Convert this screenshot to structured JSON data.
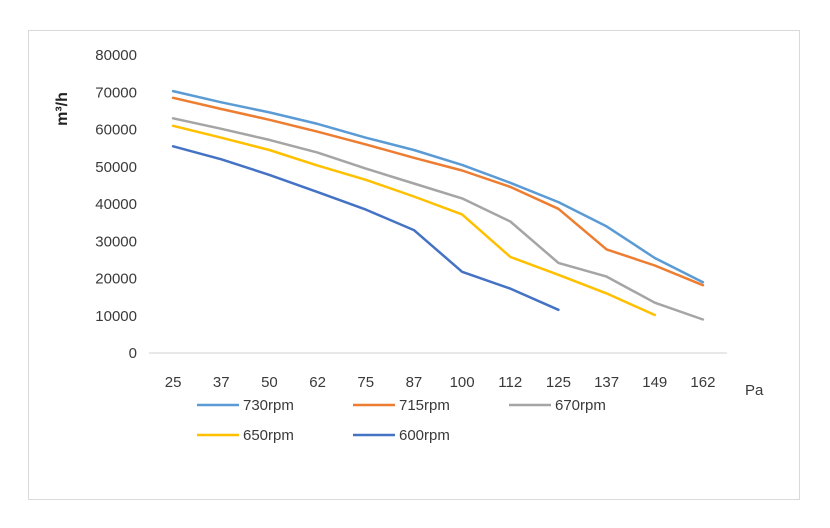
{
  "chart_data": {
    "type": "line",
    "title": "",
    "ylabel": "m³/h",
    "xunit": "Pa",
    "ylim": [
      0,
      80000
    ],
    "yticks": [
      "0",
      "10000",
      "20000",
      "30000",
      "40000",
      "50000",
      "60000",
      "70000",
      "80000"
    ],
    "categories": [
      "25",
      "37",
      "50",
      "62",
      "75",
      "87",
      "100",
      "112",
      "125",
      "137",
      "149",
      "162"
    ],
    "grid": false,
    "legend": "bottom",
    "series": [
      {
        "name": "730rpm",
        "color": "#5b9bd5",
        "values": [
          70300,
          67300,
          64600,
          61500,
          57800,
          54500,
          50500,
          45700,
          40500,
          34000,
          25500,
          19000
        ]
      },
      {
        "name": "715rpm",
        "color": "#ed7d31",
        "values": [
          68500,
          65500,
          62600,
          59400,
          56000,
          52400,
          49000,
          44600,
          38700,
          27800,
          23500,
          18200
        ]
      },
      {
        "name": "670rpm",
        "color": "#a5a5a5",
        "values": [
          63000,
          60200,
          57200,
          53800,
          49500,
          45500,
          41500,
          35300,
          24200,
          20500,
          13500,
          9000
        ]
      },
      {
        "name": "650rpm",
        "color": "#ffc000",
        "values": [
          61000,
          57800,
          54500,
          50300,
          46500,
          42000,
          37200,
          25800,
          21000,
          16000,
          10200,
          null
        ]
      },
      {
        "name": "600rpm",
        "color": "#4472c4",
        "values": [
          55500,
          52000,
          47800,
          43200,
          38500,
          33000,
          21800,
          17300,
          11600,
          null,
          null,
          null
        ]
      }
    ]
  }
}
